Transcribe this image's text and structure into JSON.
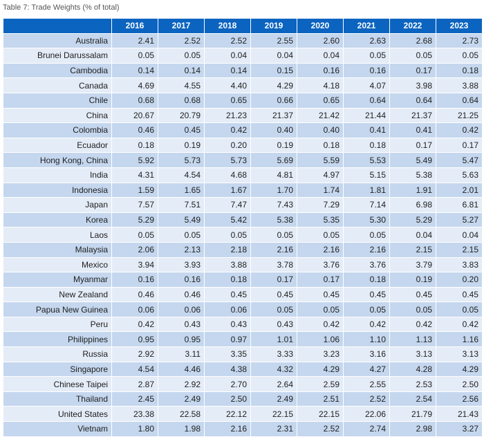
{
  "caption": "Table 7: Trade Weights (% of total)",
  "table": {
    "header_blank": "",
    "years": [
      "2016",
      "2017",
      "2018",
      "2019",
      "2020",
      "2021",
      "2022",
      "2023"
    ],
    "rows": [
      {
        "country": "Australia",
        "values": [
          "2.41",
          "2.52",
          "2.52",
          "2.55",
          "2.60",
          "2.63",
          "2.68",
          "2.73"
        ]
      },
      {
        "country": "Brunei Darussalam",
        "values": [
          "0.05",
          "0.05",
          "0.04",
          "0.04",
          "0.04",
          "0.05",
          "0.05",
          "0.05"
        ]
      },
      {
        "country": "Cambodia",
        "values": [
          "0.14",
          "0.14",
          "0.14",
          "0.15",
          "0.16",
          "0.16",
          "0.17",
          "0.18"
        ]
      },
      {
        "country": "Canada",
        "values": [
          "4.69",
          "4.55",
          "4.40",
          "4.29",
          "4.18",
          "4.07",
          "3.98",
          "3.88"
        ]
      },
      {
        "country": "Chile",
        "values": [
          "0.68",
          "0.68",
          "0.65",
          "0.66",
          "0.65",
          "0.64",
          "0.64",
          "0.64"
        ]
      },
      {
        "country": "China",
        "values": [
          "20.67",
          "20.79",
          "21.23",
          "21.37",
          "21.42",
          "21.44",
          "21.37",
          "21.25"
        ]
      },
      {
        "country": "Colombia",
        "values": [
          "0.46",
          "0.45",
          "0.42",
          "0.40",
          "0.40",
          "0.41",
          "0.41",
          "0.42"
        ]
      },
      {
        "country": "Ecuador",
        "values": [
          "0.18",
          "0.19",
          "0.20",
          "0.19",
          "0.18",
          "0.18",
          "0.17",
          "0.17"
        ]
      },
      {
        "country": "Hong Kong, China",
        "values": [
          "5.92",
          "5.73",
          "5.73",
          "5.69",
          "5.59",
          "5.53",
          "5.49",
          "5.47"
        ]
      },
      {
        "country": "India",
        "values": [
          "4.31",
          "4.54",
          "4.68",
          "4.81",
          "4.97",
          "5.15",
          "5.38",
          "5.63"
        ]
      },
      {
        "country": "Indonesia",
        "values": [
          "1.59",
          "1.65",
          "1.67",
          "1.70",
          "1.74",
          "1.81",
          "1.91",
          "2.01"
        ]
      },
      {
        "country": "Japan",
        "values": [
          "7.57",
          "7.51",
          "7.47",
          "7.43",
          "7.29",
          "7.14",
          "6.98",
          "6.81"
        ]
      },
      {
        "country": "Korea",
        "values": [
          "5.29",
          "5.49",
          "5.42",
          "5.38",
          "5.35",
          "5.30",
          "5.29",
          "5.27"
        ]
      },
      {
        "country": "Laos",
        "values": [
          "0.05",
          "0.05",
          "0.05",
          "0.05",
          "0.05",
          "0.05",
          "0.04",
          "0.04"
        ]
      },
      {
        "country": "Malaysia",
        "values": [
          "2.06",
          "2.13",
          "2.18",
          "2.16",
          "2.16",
          "2.16",
          "2.15",
          "2.15"
        ]
      },
      {
        "country": "Mexico",
        "values": [
          "3.94",
          "3.93",
          "3.88",
          "3.78",
          "3.76",
          "3.76",
          "3.79",
          "3.83"
        ]
      },
      {
        "country": "Myanmar",
        "values": [
          "0.16",
          "0.16",
          "0.18",
          "0.17",
          "0.17",
          "0.18",
          "0.19",
          "0.20"
        ]
      },
      {
        "country": "New Zealand",
        "values": [
          "0.46",
          "0.46",
          "0.45",
          "0.45",
          "0.45",
          "0.45",
          "0.45",
          "0.45"
        ]
      },
      {
        "country": "Papua New Guinea",
        "values": [
          "0.06",
          "0.06",
          "0.06",
          "0.05",
          "0.05",
          "0.05",
          "0.05",
          "0.05"
        ]
      },
      {
        "country": "Peru",
        "values": [
          "0.42",
          "0.43",
          "0.43",
          "0.43",
          "0.42",
          "0.42",
          "0.42",
          "0.42"
        ]
      },
      {
        "country": "Philippines",
        "values": [
          "0.95",
          "0.95",
          "0.97",
          "1.01",
          "1.06",
          "1.10",
          "1.13",
          "1.16"
        ]
      },
      {
        "country": "Russia",
        "values": [
          "2.92",
          "3.11",
          "3.35",
          "3.33",
          "3.23",
          "3.16",
          "3.13",
          "3.13"
        ]
      },
      {
        "country": "Singapore",
        "values": [
          "4.54",
          "4.46",
          "4.38",
          "4.32",
          "4.29",
          "4.27",
          "4.28",
          "4.29"
        ]
      },
      {
        "country": "Chinese Taipei",
        "values": [
          "2.87",
          "2.92",
          "2.70",
          "2.64",
          "2.59",
          "2.55",
          "2.53",
          "2.50"
        ]
      },
      {
        "country": "Thailand",
        "values": [
          "2.45",
          "2.49",
          "2.50",
          "2.49",
          "2.51",
          "2.52",
          "2.54",
          "2.56"
        ]
      },
      {
        "country": "United States",
        "values": [
          "23.38",
          "22.58",
          "22.12",
          "22.15",
          "22.15",
          "22.06",
          "21.79",
          "21.43"
        ]
      },
      {
        "country": "Vietnam",
        "values": [
          "1.80",
          "1.98",
          "2.16",
          "2.31",
          "2.52",
          "2.74",
          "2.98",
          "3.27"
        ]
      }
    ]
  },
  "colors": {
    "header_bg": "#0b64c0",
    "row_odd": "#c5d7ee",
    "row_even": "#e4ecf7"
  }
}
